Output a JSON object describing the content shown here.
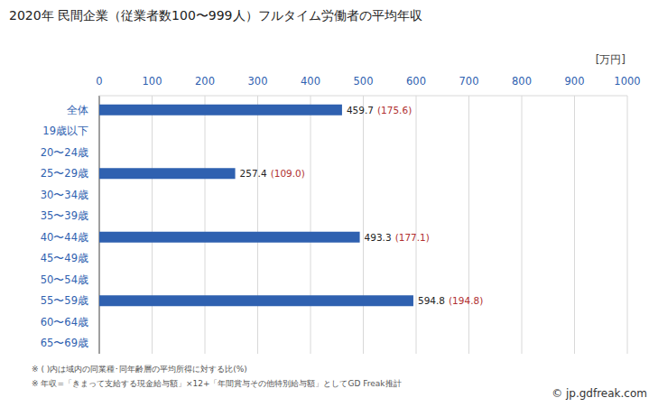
{
  "chart_data": {
    "type": "bar",
    "title": "2020年 民間企業（従業者数100〜999人）フルタイム労働者の平均年収",
    "orientation": "horizontal",
    "categories": [
      "全体",
      "19歳以下",
      "20〜24歳",
      "25〜29歳",
      "30〜34歳",
      "35〜39歳",
      "40〜44歳",
      "45〜49歳",
      "50〜54歳",
      "55〜59歳",
      "60〜64歳",
      "65〜69歳"
    ],
    "values": [
      459.7,
      null,
      null,
      257.4,
      null,
      null,
      493.3,
      null,
      null,
      594.8,
      null,
      null
    ],
    "ratio_labels": [
      "(175.6)",
      null,
      null,
      "(109.0)",
      null,
      null,
      "(177.1)",
      null,
      null,
      "(194.8)",
      null,
      null
    ],
    "color": "#2f61b0",
    "xlim": [
      0,
      1000
    ],
    "xticks": [
      0,
      100,
      200,
      300,
      400,
      500,
      600,
      700,
      800,
      900,
      1000
    ],
    "unit_label": "[万円]",
    "grid": true,
    "data_labels": true,
    "notes": [
      "※ ( )内は域内の同業種･同年齢層の平均所得に対する比(%)",
      "※ 年収=「きまって支給する現金給与額」×12+「年間賞与その他特別給与額」としてGD Freak推計"
    ],
    "source": "© jp.gdfreak.com"
  }
}
